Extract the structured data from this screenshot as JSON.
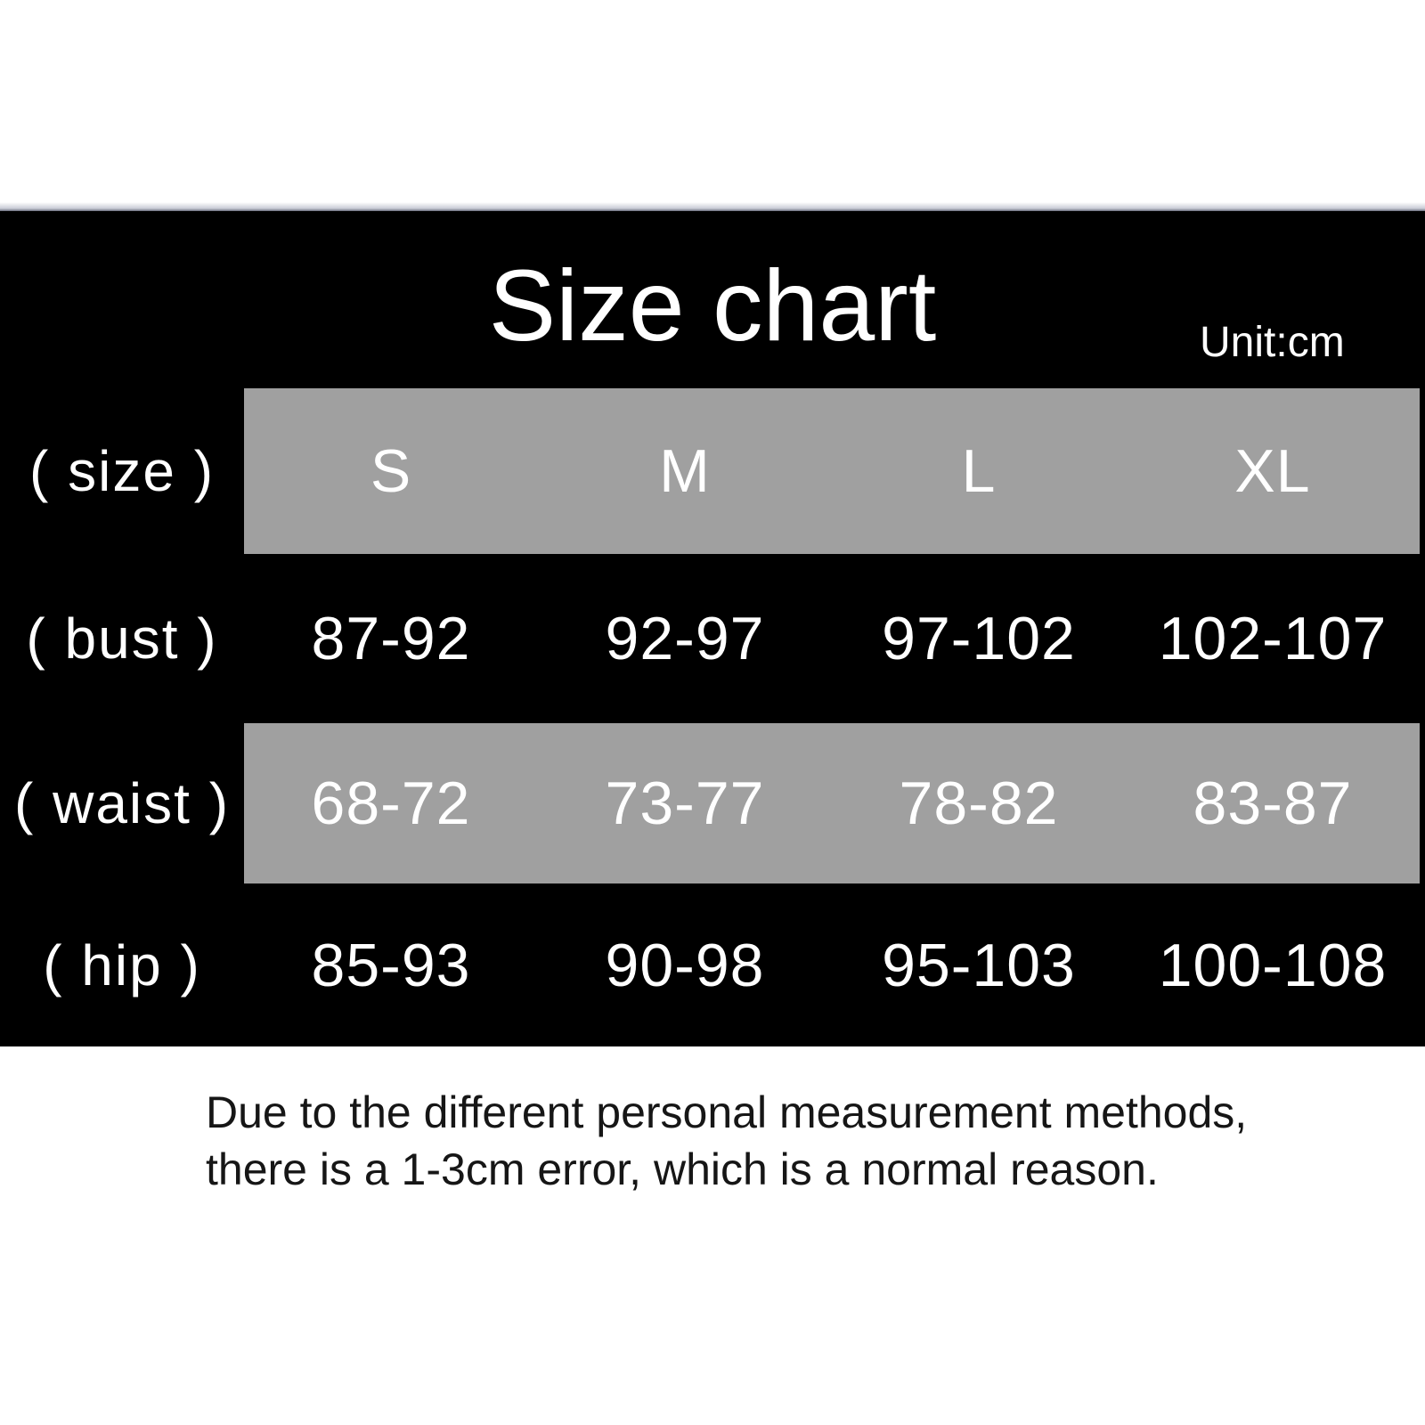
{
  "colors": {
    "page_bg": "#ffffff",
    "panel_bg": "#000000",
    "band_bg": "#a0a0a0",
    "table_text": "#ffffff",
    "note_text": "#161616"
  },
  "chart_data": {
    "type": "table",
    "title": "Size chart",
    "unit_label": "Unit:cm",
    "columns": [
      "( size )",
      "S",
      "M",
      "L",
      "XL"
    ],
    "rows": [
      {
        "label": "( bust )",
        "values": [
          "87-92",
          "92-97",
          "97-102",
          "102-107"
        ]
      },
      {
        "label": "( waist )",
        "values": [
          "68-72",
          "73-77",
          "78-82",
          "83-87"
        ]
      },
      {
        "label": "( hip )",
        "values": [
          "85-93",
          "90-98",
          "95-103",
          "100-108"
        ]
      }
    ],
    "note_lines": [
      "Due to the different personal measurement methods,",
      "there is a 1-3cm error, which is a normal reason."
    ]
  }
}
